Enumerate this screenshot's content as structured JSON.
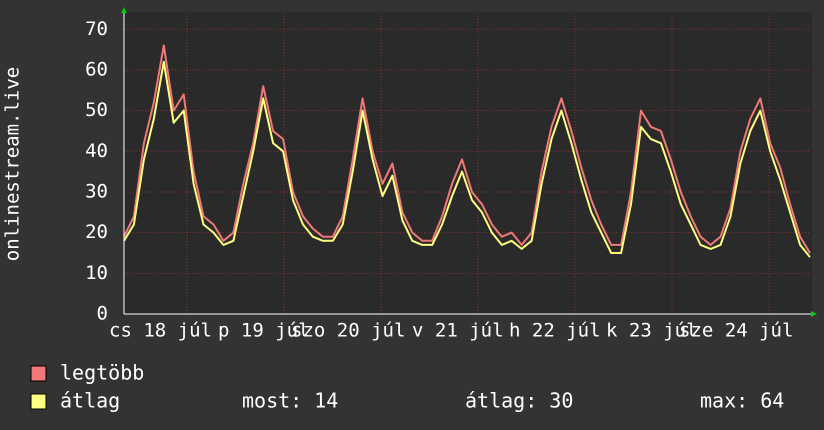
{
  "chart_data": {
    "type": "line",
    "y_label": "onlinestream.live",
    "ylim": [
      0,
      74
    ],
    "yticks": [
      0,
      10,
      20,
      30,
      40,
      50,
      60,
      70
    ],
    "grid": true,
    "xtick_labels": [
      "cs 18 júl",
      "p 19 júl",
      "szo 20 júl",
      "v 21 júl",
      "h 22 júl",
      "k 23 júl",
      "sze 24 júl"
    ],
    "series": [
      {
        "name": "legtöbb",
        "color": "#f07878",
        "values": [
          19,
          24,
          42,
          52,
          66,
          50,
          54,
          35,
          24,
          22,
          18,
          20,
          32,
          42,
          56,
          45,
          43,
          30,
          24,
          21,
          19,
          19,
          24,
          38,
          53,
          40,
          32,
          37,
          25,
          20,
          18,
          18,
          24,
          32,
          38,
          30,
          27,
          22,
          19,
          20,
          17,
          20,
          35,
          46,
          53,
          45,
          36,
          28,
          22,
          17,
          17,
          30,
          50,
          46,
          45,
          38,
          30,
          24,
          19,
          17,
          19,
          26,
          40,
          48,
          53,
          42,
          36,
          27,
          19,
          15
        ]
      },
      {
        "name": "átlag",
        "color": "#ffff80",
        "values": [
          18,
          22,
          38,
          48,
          62,
          47,
          50,
          32,
          22,
          20,
          17,
          18,
          29,
          40,
          53,
          42,
          40,
          28,
          22,
          19,
          18,
          18,
          22,
          35,
          50,
          38,
          29,
          34,
          23,
          18,
          17,
          17,
          22,
          29,
          35,
          28,
          25,
          20,
          17,
          18,
          16,
          18,
          32,
          43,
          50,
          42,
          33,
          25,
          20,
          15,
          15,
          27,
          46,
          43,
          42,
          35,
          27,
          22,
          17,
          16,
          17,
          24,
          37,
          45,
          50,
          40,
          33,
          25,
          17,
          14
        ]
      }
    ],
    "legend_stats": [
      "most: 14",
      "átlag: 30",
      "max: 64"
    ]
  }
}
